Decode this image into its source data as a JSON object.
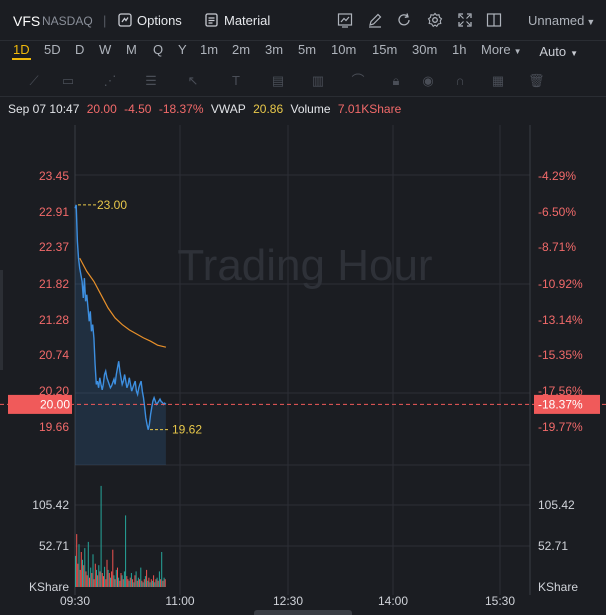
{
  "header": {
    "symbol": "VFS",
    "exchange": "NASDAQ",
    "separator": "|",
    "options_label": "Options",
    "material_label": "Material",
    "layout_label": "Unnamed",
    "icons": [
      "chart-type-icon",
      "draw-icon",
      "refresh-icon",
      "settings-icon",
      "fullscreen-icon",
      "compare-icon"
    ]
  },
  "periods": [
    "1D",
    "5D",
    "D",
    "W",
    "M",
    "Q",
    "Y",
    "1m",
    "2m",
    "3m",
    "5m",
    "10m",
    "15m",
    "30m",
    "1h",
    "More"
  ],
  "active_period": "1D",
  "scale_mode": "Auto",
  "quote": {
    "datetime": "Sep 07 10:47",
    "price": "20.00",
    "change": "-4.50",
    "change_pct": "-18.37%",
    "vwap_label": "VWAP",
    "vwap_value": "20.86",
    "volume_label": "Volume",
    "volume_value": "7.01KShare"
  },
  "chart": {
    "watermark": "Trading Hour",
    "price_ticks_left": [
      "23.45",
      "22.91",
      "22.37",
      "21.82",
      "21.28",
      "20.74",
      "20.20",
      "19.66"
    ],
    "pct_ticks_right": [
      "-4.29%",
      "-6.50%",
      "-8.71%",
      "-10.92%",
      "-13.14%",
      "-15.35%",
      "-17.56%",
      "-19.77%"
    ],
    "current_price_tag": "20.00",
    "current_pct_tag": "-18.37%",
    "high_label": "23.00",
    "low_label": "19.62",
    "volume_ticks": [
      "105.42",
      "52.71"
    ],
    "volume_unit": "KShare",
    "time_ticks": [
      "09:30",
      "11:00",
      "12:30",
      "14:00",
      "15:30"
    ]
  },
  "colors": {
    "up": "#26a69a",
    "down": "#ef5350",
    "price_line": "#3d8fe0",
    "vwap_line": "#e8902a",
    "accent": "#f0b90b",
    "price_tag": "#f05a5a"
  },
  "chart_data": {
    "type": "line",
    "title": "",
    "xlabel": "",
    "ylabel": "",
    "ylim": [
      19.4,
      23.6
    ],
    "time_range": [
      "09:30",
      "16:00"
    ],
    "series": [
      {
        "name": "",
        "x": [
          "09:30",
          "09:31",
          "09:32",
          "09:33",
          "09:34",
          "09:35",
          "09:36",
          "09:37",
          "09:38",
          "09:39",
          "09:40",
          "09:41",
          "09:42",
          "09:43",
          "09:44",
          "09:45",
          "09:46",
          "09:47",
          "09:48",
          "09:49",
          "09:50",
          "09:51",
          "09:52",
          "09:53",
          "09:54",
          "09:55",
          "09:56",
          "09:57",
          "09:58",
          "09:59",
          "10:00",
          "10:01",
          "10:02",
          "10:03",
          "10:04",
          "10:05",
          "10:06",
          "10:07",
          "10:08",
          "10:09",
          "10:10",
          "10:11",
          "10:12",
          "10:13",
          "10:14",
          "10:15",
          "10:16",
          "10:17",
          "10:18",
          "10:19",
          "10:20",
          "10:21",
          "10:22",
          "10:23",
          "10:24",
          "10:25",
          "10:26",
          "10:27",
          "10:28",
          "10:29",
          "10:30",
          "10:31",
          "10:32",
          "10:33",
          "10:34",
          "10:35",
          "10:36",
          "10:37",
          "10:38",
          "10:39",
          "10:40",
          "10:41",
          "10:42",
          "10:43",
          "10:44",
          "10:45",
          "10:46",
          "10:47"
        ],
        "y": [
          22.95,
          23.0,
          22.45,
          22.2,
          22.05,
          21.95,
          21.85,
          21.6,
          21.9,
          21.55,
          21.65,
          21.45,
          21.25,
          21.4,
          21.1,
          21.2,
          21.0,
          20.6,
          20.3,
          20.35,
          20.25,
          20.4,
          20.3,
          20.22,
          20.3,
          20.45,
          20.5,
          20.4,
          20.35,
          20.3,
          20.25,
          20.28,
          20.33,
          20.38,
          20.3,
          20.45,
          20.55,
          20.65,
          20.5,
          20.4,
          20.3,
          20.35,
          20.45,
          20.35,
          20.25,
          20.3,
          20.4,
          20.3,
          20.2,
          20.25,
          20.3,
          20.35,
          20.2,
          20.15,
          20.25,
          20.3,
          20.35,
          20.2,
          20.1,
          19.95,
          19.8,
          19.7,
          19.62,
          19.7,
          19.85,
          19.95,
          20.05,
          20.1,
          20.05,
          20.0,
          20.02,
          20.05,
          20.08,
          20.04,
          20.03,
          20.0,
          20.02,
          20.0
        ]
      },
      {
        "name": "VWAP",
        "x": [
          "09:34",
          "09:40",
          "09:46",
          "09:52",
          "09:58",
          "10:04",
          "10:10",
          "10:16",
          "10:22",
          "10:28",
          "10:34",
          "10:40",
          "10:47"
        ],
        "y": [
          22.2,
          22.0,
          21.85,
          21.65,
          21.45,
          21.3,
          21.2,
          21.12,
          21.06,
          21.0,
          20.95,
          20.89,
          20.86
        ]
      }
    ],
    "volume": {
      "ylim": [
        0,
        140
      ],
      "values": [
        40,
        68,
        30,
        55,
        22,
        45,
        35,
        28,
        50,
        20,
        15,
        58,
        12,
        25,
        18,
        42,
        10,
        30,
        22,
        15,
        28,
        20,
        130,
        18,
        14,
        26,
        10,
        35,
        22,
        18,
        12,
        20,
        48,
        15,
        10,
        22,
        25,
        12,
        8,
        18,
        15,
        10,
        20,
        92,
        14,
        10,
        8,
        12,
        18,
        10,
        6,
        15,
        20,
        8,
        12,
        10,
        25,
        8,
        6,
        10,
        14,
        22,
        8,
        12,
        6,
        10,
        8,
        15,
        6,
        10,
        12,
        8,
        20,
        10,
        45,
        8,
        12,
        10
      ],
      "colors": [
        "up",
        "down",
        "down",
        "up",
        "down",
        "down",
        "up",
        "down",
        "up",
        "down",
        "down",
        "up",
        "down",
        "up",
        "down",
        "up",
        "down",
        "down",
        "up",
        "down",
        "up",
        "down",
        "up",
        "down",
        "down",
        "up",
        "down",
        "down",
        "up",
        "down",
        "up",
        "down",
        "down",
        "up",
        "down",
        "up",
        "down",
        "up",
        "down",
        "down",
        "up",
        "down",
        "up",
        "up",
        "down",
        "down",
        "up",
        "down",
        "up",
        "down",
        "up",
        "down",
        "up",
        "down",
        "up",
        "down",
        "up",
        "down",
        "up",
        "down",
        "up",
        "down",
        "up",
        "down",
        "up",
        "down",
        "up",
        "down",
        "up",
        "down",
        "up",
        "down",
        "up",
        "down",
        "up",
        "down",
        "up",
        "down"
      ]
    }
  }
}
